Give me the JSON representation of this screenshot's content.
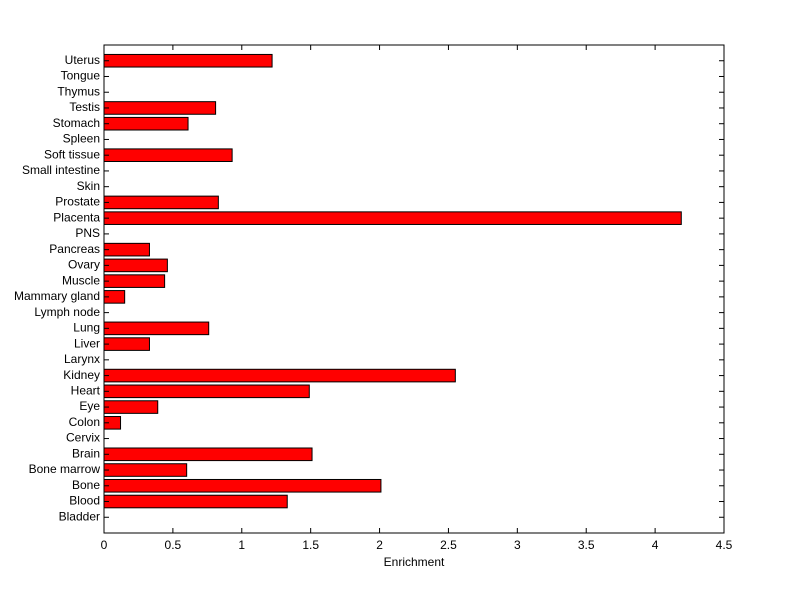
{
  "chart_data": {
    "type": "barh",
    "xlabel": "Enrichment",
    "categories": [
      "Bladder",
      "Blood",
      "Bone",
      "Bone marrow",
      "Brain",
      "Cervix",
      "Colon",
      "Eye",
      "Heart",
      "Kidney",
      "Larynx",
      "Liver",
      "Lung",
      "Lymph node",
      "Mammary gland",
      "Muscle",
      "Ovary",
      "Pancreas",
      "PNS",
      "Placenta",
      "Prostate",
      "Skin",
      "Small intestine",
      "Soft tissue",
      "Spleen",
      "Stomach",
      "Testis",
      "Thymus",
      "Tongue",
      "Uterus"
    ],
    "values": [
      0,
      1.33,
      2.01,
      0.6,
      1.51,
      0,
      0.12,
      0.39,
      1.49,
      2.55,
      0,
      0.33,
      0.76,
      0,
      0.15,
      0.44,
      0.46,
      0.33,
      0,
      4.19,
      0.83,
      0,
      0,
      0.93,
      0,
      0.61,
      0.81,
      0,
      0,
      1.22
    ],
    "color": "#ff0000",
    "xlim": [
      0,
      4.5
    ],
    "xticks": [
      0,
      0.5,
      1,
      1.5,
      2,
      2.5,
      3,
      3.5,
      4,
      4.5
    ],
    "grid": false
  }
}
